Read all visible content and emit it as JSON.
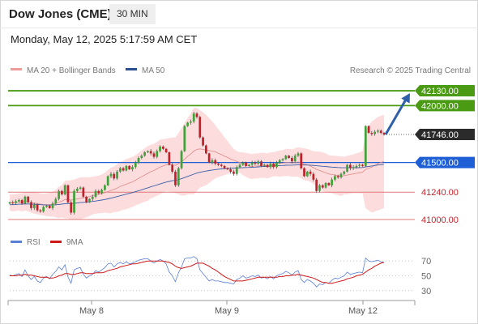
{
  "header": {
    "instrument": "Dow Jones (CME)",
    "timeframe": "30 MIN",
    "timestamp": "Monday, May 12, 2025 5:17:59 AM CET"
  },
  "legend": {
    "ma20": "MA 20 + Bollinger Bands",
    "ma50": "MA 50",
    "rsi": "RSI",
    "rsi_ma": "9MA",
    "copyright": "Research © 2025 Trading Central"
  },
  "colors": {
    "green": "#4a9a14",
    "blue": "#1e5fd6",
    "red": "#e07a7a",
    "current": "#2b2b2b",
    "band": "#fcd6d6",
    "ma20": "#e08a8a",
    "ma50": "#3b5fa8",
    "candle_up": "#3fa23a",
    "candle_down": "#c0202a",
    "rsi": "#5b7fd6",
    "rsi_ma": "#d01818"
  },
  "chart_data": [
    {
      "type": "candlestick",
      "title": "Dow Jones (CME)",
      "timeframe": "30 MIN",
      "x_ticks": [
        "May 8",
        "May 9",
        "May 12"
      ],
      "ylim": [
        40900,
        42230
      ],
      "levels": [
        {
          "label": "42130.00",
          "value": 42130,
          "kind": "resistance",
          "color": "green"
        },
        {
          "label": "42000.00",
          "value": 42000,
          "kind": "resistance",
          "color": "green"
        },
        {
          "label": "41746.00",
          "value": 41746,
          "kind": "current",
          "color": "current"
        },
        {
          "label": "41500.00",
          "value": 41500,
          "kind": "pivot",
          "color": "blue"
        },
        {
          "label": "41240.00",
          "value": 41240,
          "kind": "support",
          "color": "red"
        },
        {
          "label": "41000.00",
          "value": 41000,
          "kind": "support",
          "color": "red"
        }
      ],
      "projection": {
        "from": 41746,
        "to": 42130
      },
      "closes": [
        41150,
        41145,
        41160,
        41170,
        41140,
        41200,
        41150,
        41100,
        41130,
        41080,
        41070,
        41110,
        41120,
        41100,
        41140,
        41180,
        41250,
        41220,
        41300,
        41150,
        41060,
        41250,
        41270,
        41280,
        41200,
        41150,
        41180,
        41200,
        41250,
        41230,
        41260,
        41300,
        41380,
        41400,
        41360,
        41420,
        41450,
        41430,
        41470,
        41440,
        41460,
        41500,
        41540,
        41560,
        41590,
        41600,
        41580,
        41550,
        41600,
        41640,
        41620,
        41590,
        41480,
        41420,
        41300,
        41450,
        41600,
        41820,
        41850,
        41860,
        41930,
        41900,
        41720,
        41650,
        41580,
        41500,
        41520,
        41490,
        41480,
        41470,
        41450,
        41440,
        41420,
        41400,
        41460,
        41480,
        41500,
        41470,
        41480,
        41500,
        41490,
        41510,
        41470,
        41480,
        41460,
        41490,
        41460,
        41500,
        41520,
        41530,
        41560,
        41540,
        41510,
        41560,
        41580,
        41450,
        41380,
        41420,
        41400,
        41350,
        41250,
        41300,
        41280,
        41320,
        41300,
        41350,
        41380,
        41370,
        41400,
        41420,
        41480,
        41450,
        41460,
        41470,
        41480,
        41470,
        41820,
        41760,
        41750,
        41770,
        41780,
        41760,
        41746
      ],
      "ma20": [
        41150,
        41145,
        41150,
        41155,
        41150,
        41160,
        41155,
        41150,
        41145,
        41140,
        41135,
        41130,
        41130,
        41130,
        41135,
        41140,
        41150,
        41160,
        41175,
        41175,
        41170,
        41175,
        41180,
        41185,
        41190,
        41195,
        41200,
        41210,
        41215,
        41220,
        41225,
        41235,
        41245,
        41255,
        41265,
        41275,
        41290,
        41300,
        41310,
        41320,
        41330,
        41345,
        41360,
        41375,
        41390,
        41405,
        41420,
        41430,
        41445,
        41460,
        41470,
        41480,
        41480,
        41480,
        41475,
        41490,
        41505,
        41530,
        41555,
        41575,
        41600,
        41615,
        41620,
        41615,
        41610,
        41605,
        41600,
        41595,
        41580,
        41570,
        41555,
        41545,
        41530,
        41520,
        41510,
        41500,
        41490,
        41480,
        41470,
        41465,
        41470,
        41470,
        41475,
        41475,
        41470,
        41480,
        41485,
        41490,
        41490,
        41495,
        41500,
        41500,
        41495,
        41500,
        41505,
        41495,
        41485,
        41480,
        41470,
        41455,
        41440,
        41430,
        41420,
        41410,
        41400,
        41395,
        41390,
        41385,
        41380,
        41385,
        41390,
        41395,
        41400,
        41405,
        41410,
        41415,
        41440,
        41450,
        41460,
        41475,
        41490,
        41500,
        41510
      ],
      "ma50": [
        41130,
        41130,
        41132,
        41134,
        41134,
        41136,
        41136,
        41135,
        41134,
        41132,
        41130,
        41128,
        41127,
        41126,
        41127,
        41129,
        41132,
        41135,
        41139,
        41140,
        41140,
        41142,
        41145,
        41148,
        41150,
        41152,
        41155,
        41158,
        41162,
        41166,
        41170,
        41175,
        41181,
        41187,
        41194,
        41201,
        41208,
        41215,
        41222,
        41229,
        41236,
        41244,
        41252,
        41260,
        41269,
        41278,
        41287,
        41295,
        41303,
        41312,
        41320,
        41328,
        41334,
        41340,
        41344,
        41350,
        41358,
        41368,
        41378,
        41388,
        41398,
        41407,
        41414,
        41420,
        41425,
        41430,
        41434,
        41438,
        41441,
        41444,
        41446,
        41448,
        41450,
        41451,
        41452,
        41454,
        41455,
        41456,
        41457,
        41458,
        41460,
        41462,
        41464,
        41466,
        41467,
        41469,
        41470,
        41472,
        41473,
        41474,
        41476,
        41477,
        41477,
        41478,
        41479,
        41479,
        41478,
        41478,
        41477,
        41475,
        41472,
        41470,
        41467,
        41465,
        41462,
        41460,
        41458,
        41456,
        41455,
        41454,
        41454,
        41454,
        41454,
        41455,
        41455,
        41456,
        41462,
        41466,
        41470,
        41474,
        41478,
        41481,
        41484
      ],
      "band_upper": [
        41220,
        41220,
        41225,
        41230,
        41230,
        41240,
        41240,
        41240,
        41240,
        41235,
        41230,
        41225,
        41230,
        41235,
        41245,
        41260,
        41290,
        41300,
        41340,
        41340,
        41345,
        41350,
        41360,
        41370,
        41370,
        41370,
        41370,
        41375,
        41380,
        41385,
        41395,
        41410,
        41435,
        41455,
        41465,
        41485,
        41505,
        41515,
        41530,
        41540,
        41550,
        41565,
        41585,
        41605,
        41625,
        41645,
        41655,
        41665,
        41680,
        41700,
        41705,
        41710,
        41715,
        41720,
        41720,
        41760,
        41800,
        41850,
        41890,
        41930,
        41980,
        41980,
        41960,
        41940,
        41920,
        41890,
        41860,
        41830,
        41790,
        41760,
        41720,
        41690,
        41650,
        41620,
        41600,
        41590,
        41590,
        41585,
        41580,
        41575,
        41580,
        41580,
        41585,
        41585,
        41580,
        41590,
        41590,
        41600,
        41605,
        41610,
        41620,
        41620,
        41615,
        41625,
        41635,
        41630,
        41625,
        41620,
        41610,
        41600,
        41595,
        41595,
        41590,
        41580,
        41565,
        41560,
        41560,
        41555,
        41555,
        41550,
        41560,
        41565,
        41570,
        41580,
        41590,
        41600,
        41780,
        41820,
        41860,
        41880,
        41900,
        41910,
        41920
      ],
      "band_lower": [
        41080,
        41070,
        41075,
        41080,
        41070,
        41080,
        41070,
        41060,
        41050,
        41045,
        41040,
        41035,
        41030,
        41025,
        41025,
        41020,
        41010,
        41020,
        41010,
        41010,
        40995,
        41000,
        41000,
        41000,
        41010,
        41020,
        41030,
        41045,
        41050,
        41055,
        41055,
        41060,
        41055,
        41055,
        41065,
        41065,
        41075,
        41085,
        41090,
        41100,
        41110,
        41125,
        41135,
        41145,
        41155,
        41165,
        41185,
        41195,
        41210,
        41220,
        41235,
        41250,
        41245,
        41240,
        41230,
        41220,
        41210,
        41210,
        41220,
        41220,
        41220,
        41250,
        41280,
        41290,
        41300,
        41320,
        41340,
        41360,
        41370,
        41380,
        41390,
        41400,
        41410,
        41420,
        41420,
        41410,
        41390,
        41375,
        41360,
        41355,
        41360,
        41360,
        41365,
        41365,
        41360,
        41370,
        41380,
        41380,
        41375,
        41380,
        41380,
        41380,
        41375,
        41375,
        41375,
        41360,
        41345,
        41340,
        41330,
        41310,
        41285,
        41265,
        41250,
        41240,
        41235,
        41230,
        41220,
        41215,
        41205,
        41220,
        41220,
        41225,
        41230,
        41230,
        41230,
        41230,
        41100,
        41080,
        41060,
        41070,
        41080,
        41090,
        41100
      ]
    },
    {
      "type": "line",
      "title": "RSI",
      "ylim": [
        20,
        80
      ],
      "y_ticks": [
        70,
        50,
        30
      ],
      "series": [
        {
          "name": "RSI",
          "values": [
            51,
            50,
            52,
            53,
            49,
            58,
            50,
            45,
            49,
            43,
            41,
            47,
            49,
            46,
            52,
            56,
            62,
            58,
            65,
            48,
            40,
            58,
            60,
            61,
            52,
            47,
            50,
            52,
            57,
            55,
            58,
            61,
            66,
            67,
            62,
            66,
            68,
            66,
            69,
            66,
            67,
            69,
            71,
            72,
            73,
            73,
            70,
            67,
            70,
            72,
            70,
            66,
            55,
            50,
            42,
            54,
            62,
            73,
            74,
            74,
            76,
            73,
            58,
            53,
            48,
            43,
            45,
            43,
            43,
            42,
            41,
            41,
            40,
            39,
            45,
            47,
            50,
            47,
            48,
            50,
            49,
            51,
            47,
            48,
            46,
            49,
            46,
            50,
            52,
            53,
            56,
            54,
            51,
            55,
            57,
            45,
            41,
            45,
            43,
            40,
            35,
            39,
            38,
            41,
            40,
            44,
            47,
            46,
            48,
            50,
            55,
            52,
            53,
            54,
            55,
            54,
            74,
            70,
            69,
            70,
            71,
            69,
            68
          ]
        },
        {
          "name": "9MA",
          "values": [
            50,
            50,
            50,
            51,
            51,
            52,
            51,
            51,
            50,
            49,
            48,
            48,
            48,
            47,
            47,
            48,
            50,
            51,
            53,
            53,
            52,
            52,
            53,
            54,
            54,
            53,
            53,
            53,
            54,
            54,
            54,
            55,
            57,
            58,
            59,
            60,
            62,
            63,
            64,
            65,
            66,
            66,
            67,
            68,
            69,
            70,
            70,
            70,
            70,
            70,
            70,
            69,
            68,
            66,
            63,
            61,
            60,
            61,
            62,
            63,
            65,
            67,
            67,
            67,
            65,
            63,
            60,
            58,
            55,
            52,
            49,
            47,
            45,
            43,
            43,
            43,
            43,
            44,
            45,
            46,
            47,
            48,
            48,
            48,
            48,
            48,
            48,
            48,
            49,
            49,
            50,
            50,
            51,
            51,
            52,
            51,
            50,
            49,
            48,
            47,
            45,
            43,
            41,
            41,
            40,
            40,
            41,
            42,
            43,
            44,
            46,
            47,
            48,
            50,
            51,
            52,
            55,
            58,
            60,
            63,
            65,
            67,
            68
          ]
        }
      ]
    }
  ]
}
